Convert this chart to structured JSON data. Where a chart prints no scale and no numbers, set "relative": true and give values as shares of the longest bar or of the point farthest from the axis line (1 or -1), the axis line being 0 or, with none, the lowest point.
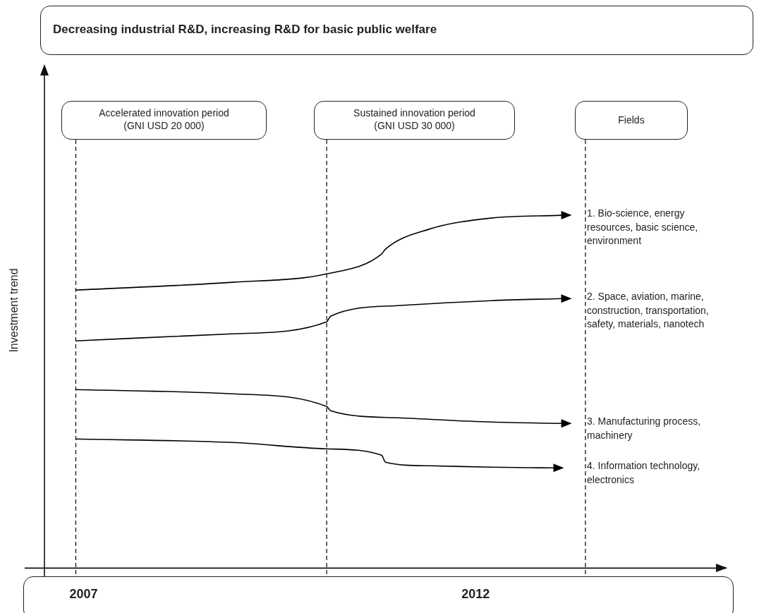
{
  "chart_data": {
    "type": "line",
    "title": "Decreasing industrial R&D, increasing R&D for basic public welfare",
    "ylabel": "Investment trend",
    "legend_title": "Fields",
    "annotations": [
      "Accelerated innovation period\n(GNI USD 20 000)",
      "Sustained innovation period\n(GNI USD 30 000)"
    ],
    "relative": true,
    "xlim": [
      2006.5,
      2015.2
    ],
    "xticks": [
      2007,
      2012
    ],
    "marker": "none",
    "line_style": "solid",
    "ref_lines": [
      {
        "axis": "x",
        "value": 2006.9,
        "line_style": "dashed",
        "color": "#000000"
      },
      {
        "axis": "x",
        "value": 2010.1,
        "line_style": "dashed",
        "color": "#000000"
      },
      {
        "axis": "x",
        "value": 2013.4,
        "line_style": "dashed",
        "color": "#000000"
      }
    ],
    "series": [
      {
        "name": "1. Bio-science, energy resources, basic science, environment",
        "color": "#000000",
        "x": [
          2006.9,
          2008.9,
          2010.1,
          2010.8,
          2010.85,
          2011.4,
          2012.2,
          2013.1
        ],
        "values": [
          0.788,
          0.81,
          0.834,
          0.89,
          0.904,
          0.96,
          0.992,
          1
        ]
      },
      {
        "name": "2. Space, aviation, marine, construction, transportation, safety, materials, nanotech",
        "color": "#000000",
        "x": [
          2006.9,
          2008.9,
          2010.1,
          2010.15,
          2011,
          2012.2,
          2013.1
        ],
        "values": [
          0.644,
          0.664,
          0.698,
          0.714,
          0.744,
          0.758,
          0.764
        ]
      },
      {
        "name": "3. Manufacturing process, machinery",
        "color": "#000000",
        "x": [
          2006.9,
          2008.9,
          2010.1,
          2010.15,
          2011,
          2012.2,
          2013.1
        ],
        "values": [
          0.506,
          0.494,
          0.458,
          0.446,
          0.426,
          0.414,
          0.41
        ]
      },
      {
        "name": "4. Information technology, electronics",
        "color": "#000000",
        "x": [
          2006.9,
          2008.9,
          2010.1,
          2010.8,
          2010.85,
          2011.4,
          2012.2,
          2013
        ],
        "values": [
          0.366,
          0.356,
          0.338,
          0.32,
          0.3,
          0.29,
          0.286,
          0.284
        ]
      }
    ]
  }
}
